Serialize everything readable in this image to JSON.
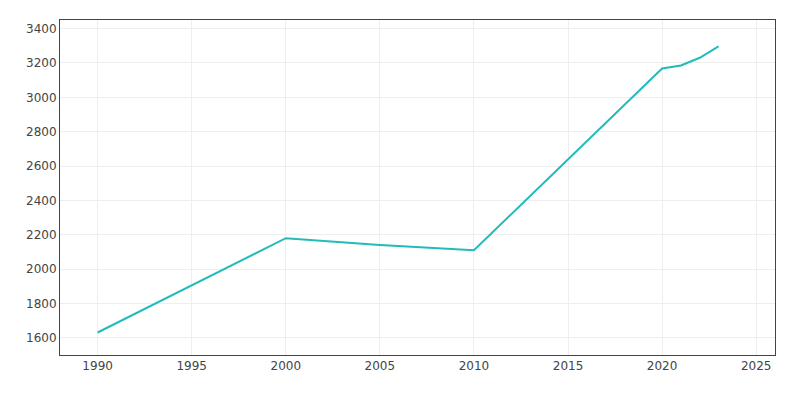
{
  "chart_data": {
    "type": "line",
    "x": [
      1990,
      2000,
      2005,
      2010,
      2020,
      2021,
      2022,
      2023
    ],
    "values": [
      1631,
      2180,
      2140,
      2110,
      3168,
      3185,
      3230,
      3296
    ],
    "color": "#22BBBB",
    "xlim": [
      1988,
      2026
    ],
    "ylim": [
      1500,
      3450
    ],
    "xticks": [
      1990,
      1995,
      2000,
      2005,
      2010,
      2015,
      2020,
      2025
    ],
    "yticks": [
      1600,
      1800,
      2000,
      2200,
      2400,
      2600,
      2800,
      3000,
      3200,
      3400
    ],
    "grid": true
  }
}
